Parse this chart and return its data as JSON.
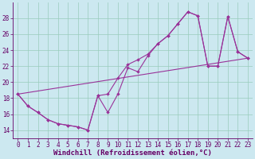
{
  "xlabel": "Windchill (Refroidissement éolien,°C)",
  "background_color": "#cce8f0",
  "grid_color": "#99ccbb",
  "line_color": "#993399",
  "xlim": [
    -0.5,
    23.5
  ],
  "ylim": [
    13.0,
    30.0
  ],
  "yticks": [
    14,
    16,
    18,
    20,
    22,
    24,
    26,
    28
  ],
  "xticks": [
    0,
    1,
    2,
    3,
    4,
    5,
    6,
    7,
    8,
    9,
    10,
    11,
    12,
    13,
    14,
    15,
    16,
    17,
    18,
    19,
    20,
    21,
    22,
    23
  ],
  "line1_x": [
    0,
    1,
    2,
    3,
    4,
    5,
    6,
    7,
    8,
    9,
    10,
    11,
    12,
    13,
    14,
    15,
    16,
    17,
    18,
    19,
    20,
    21,
    22,
    23
  ],
  "line1_y": [
    18.5,
    17.0,
    16.2,
    15.3,
    14.8,
    14.6,
    14.4,
    14.0,
    18.3,
    16.2,
    18.5,
    21.8,
    21.3,
    23.3,
    24.8,
    25.8,
    27.3,
    28.8,
    28.3,
    22.0,
    22.0,
    28.2,
    23.8,
    23.0
  ],
  "line2_y": [
    18.5,
    17.0,
    16.2,
    15.3,
    14.8,
    14.6,
    14.4,
    14.0,
    18.3,
    18.5,
    20.5,
    22.2,
    22.8,
    23.5,
    24.8,
    25.8,
    27.3,
    28.8,
    28.3,
    22.0,
    22.0,
    28.2,
    23.8,
    23.0
  ],
  "line3_x": [
    0,
    23
  ],
  "line3_y": [
    18.5,
    23.0
  ],
  "font_size": 6.5,
  "tick_font_size": 5.5,
  "marker_size": 2.0,
  "line_width": 0.8
}
